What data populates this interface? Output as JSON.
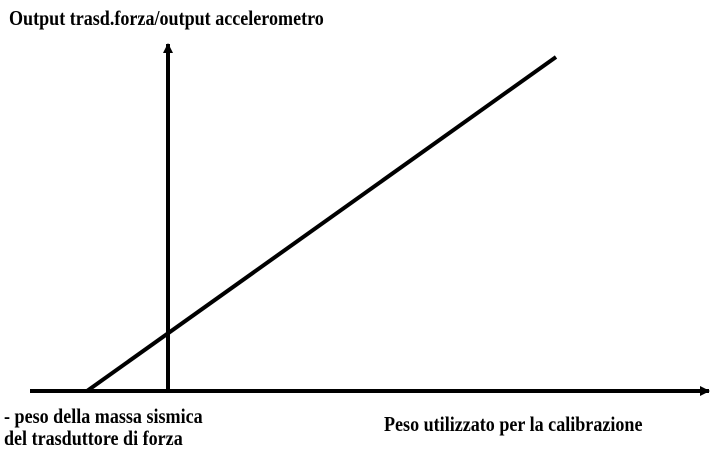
{
  "diagram": {
    "y_axis_label": "Output trasd.forza/output accelerometro",
    "x_axis_label": "Peso utilizzato per la calibrazione",
    "intercept_label": {
      "line1": "- peso della massa sismica",
      "line2": "del trasduttore di forza"
    },
    "line_color": "#000000",
    "background_color": "#ffffff"
  }
}
